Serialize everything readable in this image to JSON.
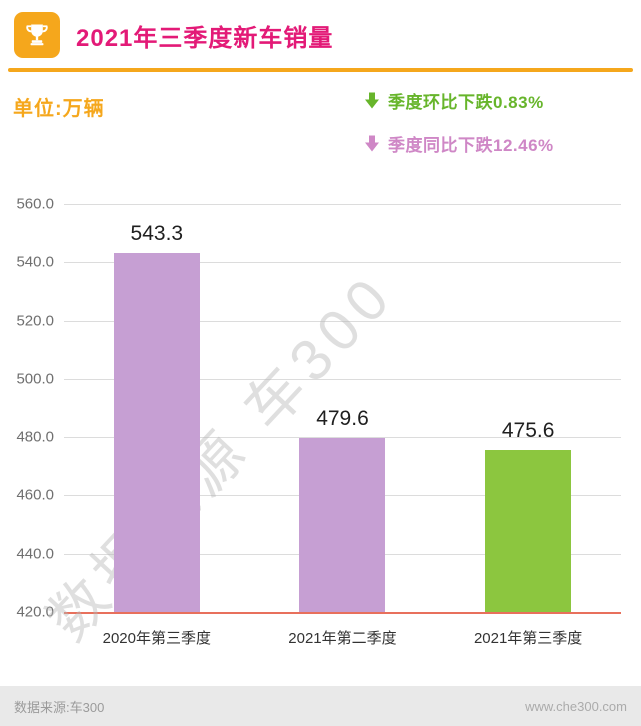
{
  "header": {
    "title": "2021年三季度新车销量"
  },
  "unit_label": "单位:万辆",
  "annotations": [
    {
      "text": "季度环比下跌0.83%",
      "color": "#67b52b"
    },
    {
      "text": "季度同比下跌12.46%",
      "color": "#cf87c6"
    }
  ],
  "watermark": "数据来源 车300",
  "footer": {
    "source": "数据来源:车300",
    "site": "www.che300.com"
  },
  "colors": {
    "orange": "#f5a71c",
    "title_pink": "#e31a77",
    "axis_red": "#e8705c",
    "purple_bar": "#c69fd3",
    "green_bar": "#8cc63f"
  },
  "chart_data": {
    "type": "bar",
    "title": "2021年三季度新车销量",
    "unit": "万辆",
    "categories": [
      "2020年第三季度",
      "2021年第二季度",
      "2021年第三季度"
    ],
    "values": [
      543.3,
      479.6,
      475.6
    ],
    "bar_colors": [
      "#c69fd3",
      "#c69fd3",
      "#8cc63f"
    ],
    "ylim": [
      420,
      560
    ],
    "ytick_step": 20,
    "grid": true,
    "legend": "none",
    "annotations": [
      "季度环比下跌0.83%",
      "季度同比下跌12.46%"
    ]
  }
}
